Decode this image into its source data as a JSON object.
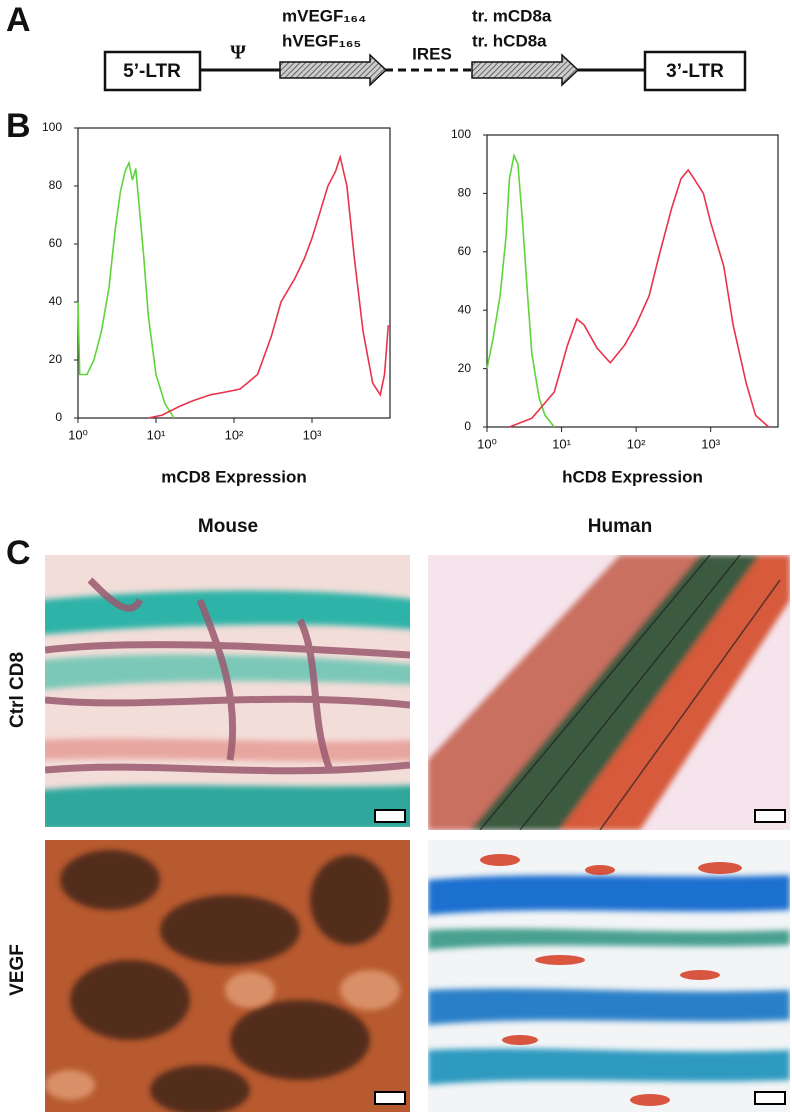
{
  "panel_a": {
    "label": "A",
    "left_ltr": "5’-LTR",
    "psi": "Ψ",
    "gene_1": [
      "mVEGF₁₆₄",
      "hVEGF₁₆₅"
    ],
    "ires": "IRES",
    "gene_2": [
      "tr. mCD8a",
      "tr. hCD8a"
    ],
    "right_ltr": "3’-LTR"
  },
  "panel_b": {
    "label": "B"
  },
  "chart_data": [
    {
      "type": "line",
      "xlabel": "mCD8 Expression",
      "xscale": "log",
      "xlim": [
        1,
        10000
      ],
      "ylim": [
        0,
        100
      ],
      "xticks": [
        {
          "value": 1,
          "label": "10⁰"
        },
        {
          "value": 10,
          "label": "10¹"
        },
        {
          "value": 100,
          "label": "10²"
        },
        {
          "value": 1000,
          "label": "10³"
        }
      ],
      "yticks": [
        0,
        20,
        40,
        60,
        80,
        100
      ],
      "series": [
        {
          "color": "#5fd43c",
          "x": [
            1,
            1.05,
            1.3,
            1.6,
            2,
            2.5,
            3,
            3.5,
            4,
            4.5,
            5,
            5.5,
            6,
            7,
            8,
            10,
            13,
            17
          ],
          "values": [
            40,
            15,
            15,
            20,
            30,
            45,
            65,
            78,
            85,
            88,
            82,
            86,
            75,
            55,
            35,
            15,
            5,
            0
          ]
        },
        {
          "color": "#e8334a",
          "x": [
            8,
            12,
            20,
            30,
            50,
            80,
            120,
            200,
            300,
            400,
            600,
            800,
            1000,
            1300,
            1600,
            2000,
            2300,
            2800,
            3500,
            4500,
            6000,
            7500,
            8500,
            9500
          ],
          "values": [
            0,
            1,
            4,
            6,
            8,
            9,
            10,
            15,
            28,
            40,
            48,
            55,
            62,
            72,
            80,
            85,
            90,
            80,
            55,
            30,
            12,
            8,
            15,
            32
          ]
        }
      ]
    },
    {
      "type": "line",
      "xlabel": "hCD8 Expression",
      "xscale": "log",
      "xlim": [
        1,
        8000
      ],
      "ylim": [
        0,
        100
      ],
      "xticks": [
        {
          "value": 1,
          "label": "10⁰"
        },
        {
          "value": 10,
          "label": "10¹"
        },
        {
          "value": 100,
          "label": "10²"
        },
        {
          "value": 1000,
          "label": "10³"
        }
      ],
      "yticks": [
        0,
        20,
        40,
        60,
        80,
        100
      ],
      "series": [
        {
          "color": "#5fd43c",
          "x": [
            1,
            1.2,
            1.5,
            1.8,
            2,
            2.3,
            2.6,
            3,
            3.5,
            4,
            5,
            6,
            8
          ],
          "values": [
            20,
            30,
            45,
            65,
            85,
            93,
            90,
            70,
            45,
            25,
            10,
            4,
            0
          ]
        },
        {
          "color": "#e8334a",
          "x": [
            2,
            4,
            8,
            12,
            16,
            20,
            30,
            45,
            70,
            100,
            150,
            200,
            300,
            400,
            500,
            600,
            800,
            1000,
            1500,
            2000,
            3000,
            4000,
            6000
          ],
          "values": [
            0,
            3,
            12,
            28,
            37,
            35,
            27,
            22,
            28,
            35,
            45,
            58,
            75,
            85,
            88,
            85,
            80,
            70,
            55,
            35,
            15,
            4,
            0
          ]
        }
      ]
    }
  ],
  "panel_c": {
    "label": "C",
    "columns": [
      "Mouse",
      "Human"
    ],
    "rows": [
      "Ctrl CD8",
      "VEGF"
    ]
  }
}
